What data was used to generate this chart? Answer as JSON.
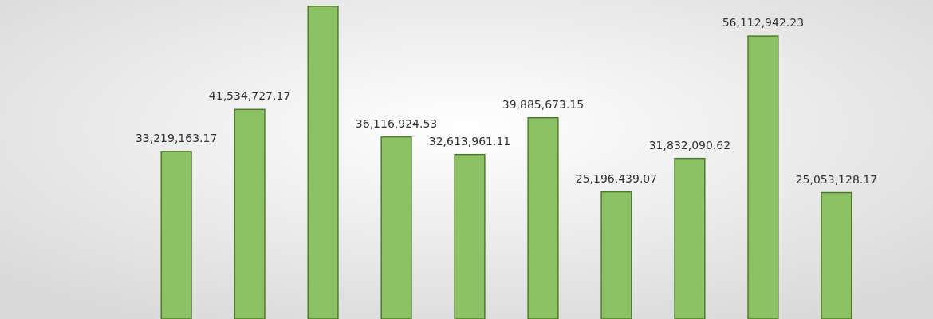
{
  "chart_data": {
    "type": "bar",
    "categories": [
      null,
      null,
      null,
      null,
      null,
      null,
      null,
      null,
      null,
      null
    ],
    "values": [
      33219163.17,
      41534727.17,
      62000000,
      36116924.53,
      32613961.11,
      39885673.15,
      25196439.07,
      31832090.62,
      56112942.23,
      25053128.17
    ],
    "value_labels": [
      "33,219,163.17",
      "41,534,727.17",
      null,
      "36,116,924.53",
      "32,613,961.11",
      "39,885,673.15",
      "25,196,439.07",
      "31,832,090.62",
      "56,112,942.23",
      "25,053,128.17"
    ],
    "color": "#8cc263"
  }
}
